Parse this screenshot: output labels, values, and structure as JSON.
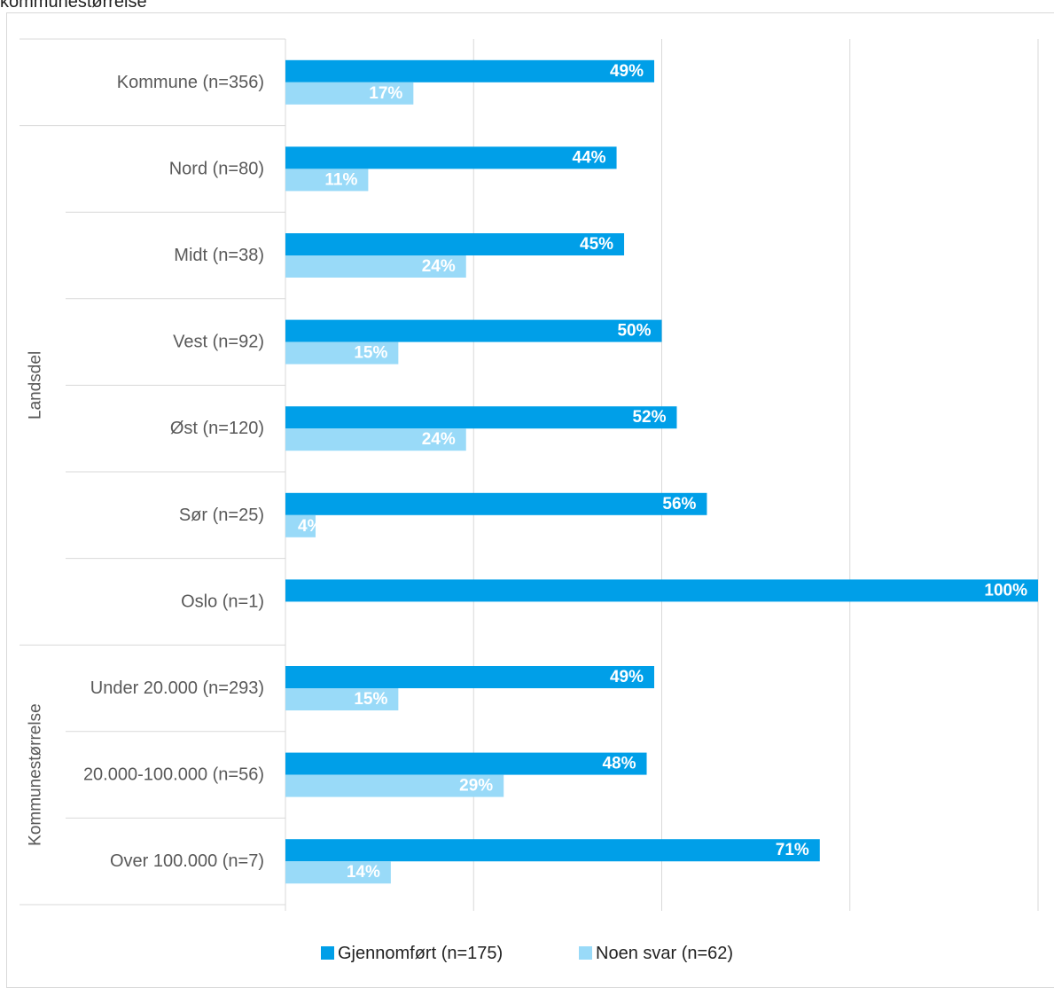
{
  "header": {
    "text": "kommunestørrelse"
  },
  "chart_data": {
    "type": "bar",
    "orientation": "horizontal",
    "xlim": [
      0,
      100
    ],
    "grid": true,
    "legend_position": "bottom",
    "groups": [
      {
        "label": "",
        "categories": [
          "Kommune (n=356)"
        ]
      },
      {
        "label": "Landsdel",
        "categories": [
          "Nord (n=80)",
          "Midt (n=38)",
          "Vest (n=92)",
          "Øst (n=120)",
          "Sør (n=25)",
          "Oslo (n=1)"
        ]
      },
      {
        "label": "Kommunestørrelse",
        "categories": [
          "Under 20.000 (n=293)",
          "20.000-100.000 (n=56)",
          "Over 100.000 (n=7)"
        ]
      }
    ],
    "categories": [
      "Kommune (n=356)",
      "Nord (n=80)",
      "Midt (n=38)",
      "Vest (n=92)",
      "Øst (n=120)",
      "Sør (n=25)",
      "Oslo (n=1)",
      "Under 20.000 (n=293)",
      "20.000-100.000 (n=56)",
      "Over 100.000 (n=7)"
    ],
    "series": [
      {
        "name": "Gjennomført (n=175)",
        "color": "#009fe8",
        "values": [
          49,
          44,
          45,
          50,
          52,
          56,
          100,
          49,
          48,
          71
        ],
        "labels": [
          "49%",
          "44%",
          "45%",
          "50%",
          "52%",
          "56%",
          "100%",
          "49%",
          "48%",
          "71%"
        ]
      },
      {
        "name": "Noen svar (n=62)",
        "color": "#99daf8",
        "values": [
          17,
          11,
          24,
          15,
          24,
          4,
          0,
          15,
          29,
          14
        ],
        "labels": [
          "17%",
          "11%",
          "24%",
          "15%",
          "24%",
          "4%",
          "",
          "15%",
          "29%",
          "14%"
        ]
      }
    ]
  }
}
